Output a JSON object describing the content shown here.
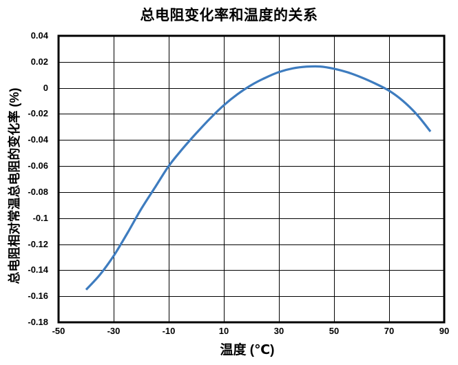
{
  "chart_data": {
    "type": "line",
    "title": "总电阻变化率和温度的关系",
    "xlabel": "温度 (℃)",
    "ylabel": "总电阻相对常温总电阻的变化率 (%)",
    "xlim": [
      -50,
      90
    ],
    "ylim": [
      -0.18,
      0.04
    ],
    "x_ticks": [
      -50,
      -30,
      -10,
      10,
      30,
      50,
      70,
      90
    ],
    "x_tick_labels": [
      "-50",
      "-30",
      "-10",
      "10",
      "30",
      "50",
      "70",
      "90"
    ],
    "y_ticks": [
      0.04,
      0.02,
      0,
      -0.02,
      -0.04,
      -0.06,
      -0.08,
      -0.1,
      -0.12,
      -0.14,
      -0.16,
      -0.18
    ],
    "y_tick_labels": [
      "0.04",
      "0.02",
      "0",
      "-0.02",
      "-0.04",
      "-0.06",
      "-0.08",
      "-0.1",
      "-0.12",
      "-0.14",
      "-0.16",
      "-0.18"
    ],
    "grid": true,
    "legend": false,
    "line_color": "#3E7CBF",
    "x": [
      -40,
      -35,
      -30,
      -25,
      -20,
      -15,
      -10,
      -5,
      0,
      5,
      10,
      15,
      20,
      25,
      30,
      35,
      40,
      45,
      50,
      55,
      60,
      65,
      70,
      75,
      80,
      85
    ],
    "y": [
      -0.155,
      -0.1435,
      -0.129,
      -0.1115,
      -0.093,
      -0.0765,
      -0.06,
      -0.0468,
      -0.0348,
      -0.0235,
      -0.0133,
      -0.0048,
      0.0022,
      0.0077,
      0.0122,
      0.015,
      0.0163,
      0.0164,
      0.0147,
      0.0119,
      0.008,
      0.0033,
      -0.0022,
      -0.01,
      -0.0203,
      -0.0335
    ]
  }
}
